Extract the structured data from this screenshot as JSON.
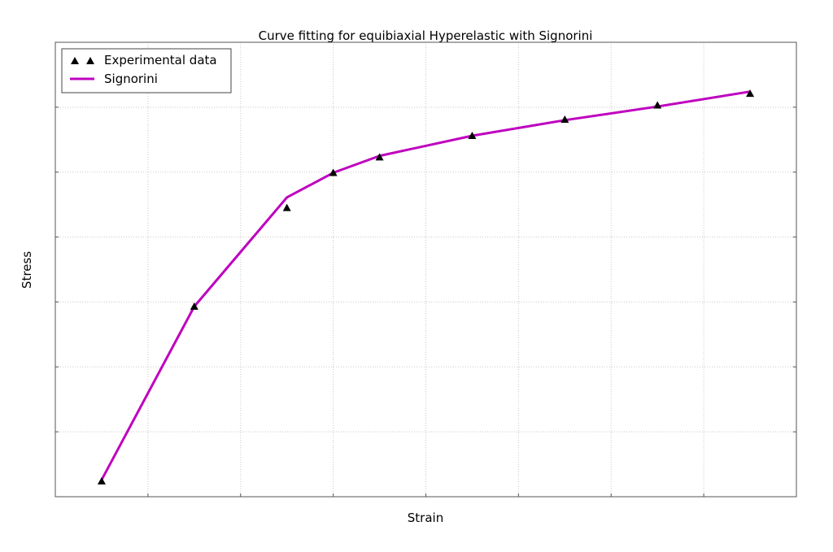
{
  "chart_data": {
    "type": "line",
    "title": "Curve fitting for equibiaxial Hyperelastic with Signorini",
    "xlabel": "Strain",
    "ylabel": "Stress",
    "xlim": [
      0,
      8
    ],
    "ylim": [
      0,
      7
    ],
    "grid": true,
    "tick_labels_shown": false,
    "legend_position": "upper left",
    "series": [
      {
        "name": "Experimental data",
        "kind": "scatter",
        "marker": "triangle",
        "color": "#000000",
        "x": [
          0.5,
          1.5,
          2.5,
          3.0,
          3.5,
          4.5,
          5.5,
          6.5,
          7.5
        ],
        "y": [
          0.24,
          2.93,
          4.45,
          4.99,
          5.23,
          5.56,
          5.81,
          6.03,
          6.21
        ]
      },
      {
        "name": "Signorini",
        "kind": "line",
        "color": "#bf00bf",
        "x": [
          0.5,
          1.5,
          2.5,
          3.0,
          3.5,
          4.5,
          5.5,
          6.5,
          7.5
        ],
        "y": [
          0.26,
          2.93,
          4.61,
          4.99,
          5.25,
          5.56,
          5.8,
          6.01,
          6.24
        ]
      }
    ]
  }
}
